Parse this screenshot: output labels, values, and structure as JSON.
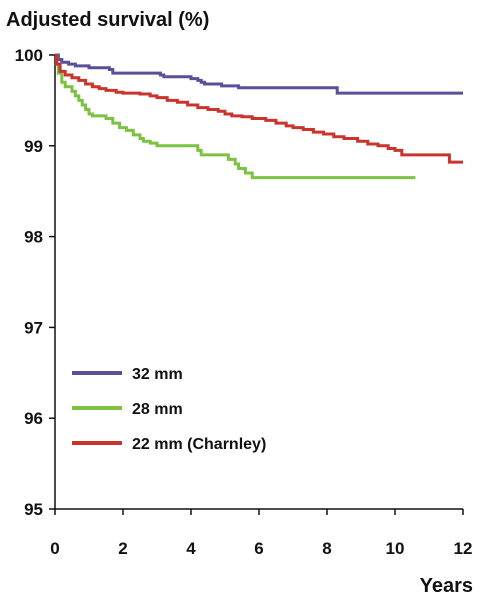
{
  "chart_data": {
    "type": "line",
    "title": "",
    "ylabel": "Adjusted survival (%)",
    "xlabel": "Years",
    "xlim": [
      0,
      12
    ],
    "ylim": [
      95,
      100
    ],
    "x_ticks": [
      0,
      2,
      4,
      6,
      8,
      10,
      12
    ],
    "y_ticks": [
      95,
      96,
      97,
      98,
      99,
      100
    ],
    "x_tick_labels": [
      "0",
      "2",
      "4",
      "6",
      "8",
      "10",
      "12"
    ],
    "y_tick_labels": [
      "95",
      "96",
      "97",
      "98",
      "99",
      "100"
    ],
    "grid": false,
    "legend_position": "bottom-left",
    "series": [
      {
        "name": "32 mm",
        "color": "#5b4f9a",
        "step": true,
        "points": [
          [
            0,
            100
          ],
          [
            0.1,
            99.95
          ],
          [
            0.2,
            99.92
          ],
          [
            0.4,
            99.9
          ],
          [
            0.6,
            99.88
          ],
          [
            1.0,
            99.86
          ],
          [
            1.6,
            99.84
          ],
          [
            1.7,
            99.8
          ],
          [
            2.5,
            99.8
          ],
          [
            3.1,
            99.78
          ],
          [
            3.2,
            99.76
          ],
          [
            4.0,
            99.74
          ],
          [
            4.2,
            99.72
          ],
          [
            4.3,
            99.7
          ],
          [
            4.4,
            99.68
          ],
          [
            4.9,
            99.66
          ],
          [
            5.4,
            99.64
          ],
          [
            8.2,
            99.64
          ],
          [
            8.3,
            99.58
          ],
          [
            12.0,
            99.58
          ]
        ]
      },
      {
        "name": "28 mm",
        "color": "#7cc242",
        "step": true,
        "points": [
          [
            0,
            100
          ],
          [
            0.05,
            99.9
          ],
          [
            0.1,
            99.8
          ],
          [
            0.2,
            99.7
          ],
          [
            0.3,
            99.65
          ],
          [
            0.5,
            99.6
          ],
          [
            0.6,
            99.55
          ],
          [
            0.7,
            99.5
          ],
          [
            0.8,
            99.45
          ],
          [
            0.9,
            99.4
          ],
          [
            1.0,
            99.35
          ],
          [
            1.1,
            99.33
          ],
          [
            1.5,
            99.3
          ],
          [
            1.7,
            99.25
          ],
          [
            1.9,
            99.2
          ],
          [
            2.1,
            99.17
          ],
          [
            2.3,
            99.12
          ],
          [
            2.5,
            99.08
          ],
          [
            2.6,
            99.05
          ],
          [
            2.8,
            99.03
          ],
          [
            3.0,
            99.0
          ],
          [
            4.1,
            99.0
          ],
          [
            4.2,
            98.95
          ],
          [
            4.3,
            98.9
          ],
          [
            5.0,
            98.9
          ],
          [
            5.1,
            98.85
          ],
          [
            5.3,
            98.8
          ],
          [
            5.4,
            98.75
          ],
          [
            5.6,
            98.7
          ],
          [
            5.8,
            98.65
          ],
          [
            10.6,
            98.65
          ]
        ]
      },
      {
        "name": "22 mm (Charnley)",
        "color": "#c9342c",
        "step": true,
        "points": [
          [
            0,
            100
          ],
          [
            0.05,
            99.9
          ],
          [
            0.15,
            99.82
          ],
          [
            0.3,
            99.78
          ],
          [
            0.5,
            99.75
          ],
          [
            0.7,
            99.72
          ],
          [
            0.9,
            99.68
          ],
          [
            1.1,
            99.65
          ],
          [
            1.3,
            99.63
          ],
          [
            1.5,
            99.61
          ],
          [
            1.8,
            99.59
          ],
          [
            2.0,
            99.58
          ],
          [
            2.5,
            99.57
          ],
          [
            2.8,
            99.55
          ],
          [
            3.0,
            99.53
          ],
          [
            3.3,
            99.5
          ],
          [
            3.6,
            99.48
          ],
          [
            3.9,
            99.45
          ],
          [
            4.2,
            99.42
          ],
          [
            4.5,
            99.4
          ],
          [
            4.8,
            99.38
          ],
          [
            5.0,
            99.35
          ],
          [
            5.2,
            99.33
          ],
          [
            5.5,
            99.32
          ],
          [
            5.8,
            99.3
          ],
          [
            6.2,
            99.28
          ],
          [
            6.5,
            99.25
          ],
          [
            6.8,
            99.22
          ],
          [
            7.0,
            99.2
          ],
          [
            7.3,
            99.18
          ],
          [
            7.6,
            99.15
          ],
          [
            7.9,
            99.13
          ],
          [
            8.2,
            99.1
          ],
          [
            8.5,
            99.08
          ],
          [
            8.9,
            99.05
          ],
          [
            9.2,
            99.02
          ],
          [
            9.5,
            99.0
          ],
          [
            9.8,
            98.97
          ],
          [
            10.0,
            98.95
          ],
          [
            10.2,
            98.9
          ],
          [
            11.5,
            98.9
          ],
          [
            11.6,
            98.82
          ],
          [
            12.0,
            98.82
          ]
        ]
      }
    ]
  }
}
